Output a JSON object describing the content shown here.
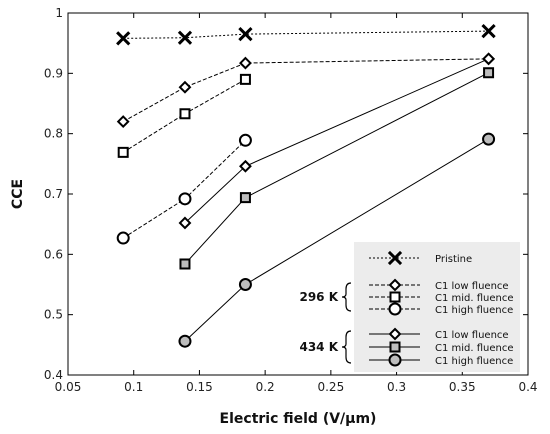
{
  "chart_data": {
    "type": "line",
    "title": "",
    "xlabel": "Electric field (V/µm)",
    "ylabel": "CCE",
    "xlim": [
      0.05,
      0.4
    ],
    "ylim": [
      0.4,
      1.0
    ],
    "xticks": [
      "0.05",
      "0.1",
      "0.15",
      "0.2",
      "0.25",
      "0.3",
      "0.35",
      "0.4"
    ],
    "yticks": [
      "0.4",
      "0.5",
      "0.6",
      "0.7",
      "0.8",
      "0.9",
      "1"
    ],
    "grid": false,
    "legend_position": "bottom-right",
    "series": [
      {
        "name": "Pristine",
        "group": "",
        "marker": "x",
        "line": "dotted",
        "fill": "#000000",
        "x": [
          0.092,
          0.139,
          0.185,
          0.37
        ],
        "y": [
          0.958,
          0.959,
          0.965,
          0.97
        ]
      },
      {
        "name": "C1 low fluence",
        "group": "296 K",
        "marker": "diamond",
        "line": "dashed",
        "fill": "#ffffff",
        "x": [
          0.092,
          0.139,
          0.185,
          0.37
        ],
        "y": [
          0.82,
          0.877,
          0.917,
          0.924
        ]
      },
      {
        "name": "C1 mid. fluence",
        "group": "296 K",
        "marker": "square",
        "line": "dashed",
        "fill": "#ffffff",
        "x": [
          0.092,
          0.139,
          0.185
        ],
        "y": [
          0.769,
          0.833,
          0.89
        ]
      },
      {
        "name": "C1 high fluence",
        "group": "296 K",
        "marker": "circle",
        "line": "dashed",
        "fill": "#ffffff",
        "x": [
          0.092,
          0.139,
          0.185
        ],
        "y": [
          0.627,
          0.692,
          0.789
        ]
      },
      {
        "name": "C1 low fluence",
        "group": "434 K",
        "marker": "diamond",
        "line": "solid",
        "fill": "#ffffff",
        "x": [
          0.139,
          0.185,
          0.37
        ],
        "y": [
          0.652,
          0.746,
          0.924
        ]
      },
      {
        "name": "C1 mid. fluence",
        "group": "434 K",
        "marker": "square",
        "line": "solid",
        "fill": "#bdbdbd",
        "x": [
          0.139,
          0.185,
          0.37
        ],
        "y": [
          0.584,
          0.694,
          0.901
        ]
      },
      {
        "name": "C1 high fluence",
        "group": "434 K",
        "marker": "circle",
        "line": "solid",
        "fill": "#bdbdbd",
        "x": [
          0.139,
          0.185,
          0.37
        ],
        "y": [
          0.456,
          0.55,
          0.791
        ]
      }
    ],
    "legend_groups": [
      "296 K",
      "434 K"
    ]
  }
}
